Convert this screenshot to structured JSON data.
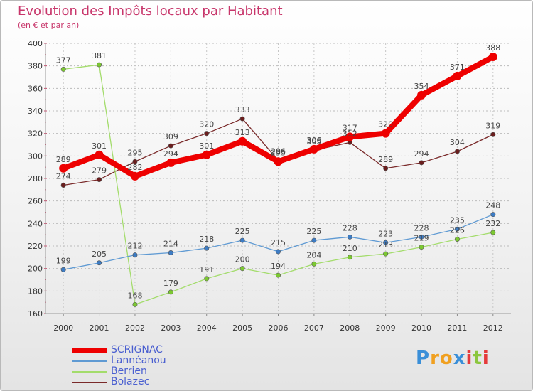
{
  "header": {
    "title": "Evolution des Impôts locaux par Habitant",
    "subtitle": "(en € et par an)"
  },
  "logo": {
    "letters": [
      "P",
      "r",
      "o",
      "x",
      "i",
      "t",
      "i"
    ],
    "colors": [
      "#3a8fd8",
      "#f0a020",
      "#f0a020",
      "#3a8fd8",
      "#e53a3a",
      "#8cc63f",
      "#e53a3a"
    ]
  },
  "legend": [
    {
      "name": "SCRIGNAC",
      "color": "#ee0000"
    },
    {
      "name": "Lannéanou",
      "color": "#5f9ad3"
    },
    {
      "name": "Berrien",
      "color": "#a3dc6b"
    },
    {
      "name": "Bolazec",
      "color": "#7a2a2a"
    }
  ],
  "chart_data": {
    "type": "line",
    "title": "Evolution des Impôts locaux par Habitant",
    "subtitle": "(en € et par an)",
    "x": [
      "2000",
      "2001",
      "2002",
      "2003",
      "2004",
      "2005",
      "2006",
      "2007",
      "2008",
      "2009",
      "2010",
      "2011",
      "2012"
    ],
    "ylim": [
      160,
      400
    ],
    "yticks": [
      160,
      180,
      200,
      220,
      240,
      260,
      280,
      300,
      320,
      340,
      360,
      380,
      400
    ],
    "grid": true,
    "legend_position": "bottom-left",
    "series": [
      {
        "name": "SCRIGNAC",
        "color": "#ee0000",
        "marker": "#ee0000",
        "values": [
          289,
          301,
          282,
          294,
          301,
          313,
          295,
          306,
          317,
          320,
          354,
          371,
          388
        ],
        "labels": [
          "289",
          "301",
          "282",
          "294",
          "301",
          "313",
          "295",
          "306",
          "317",
          "320",
          "354",
          "371",
          "388"
        ]
      },
      {
        "name": "Lannéanou",
        "color": "#5f9ad3",
        "marker": "#3d7cc4",
        "values": [
          199,
          205,
          212,
          214,
          218,
          225,
          215,
          225,
          228,
          223,
          228,
          235,
          248
        ],
        "labels": [
          "199",
          "205",
          "212",
          "214",
          "218",
          "225",
          "215",
          "225",
          "228",
          "223",
          "228",
          "235",
          "248"
        ]
      },
      {
        "name": "Berrien",
        "color": "#a3dc6b",
        "marker": "#7cc832",
        "values": [
          377,
          381,
          168,
          179,
          191,
          200,
          194,
          204,
          210,
          213,
          219,
          226,
          232
        ],
        "labels": [
          "377",
          "381",
          "168",
          "179",
          "191",
          "200",
          "194",
          "204",
          "210",
          "213",
          "219",
          "226",
          "232"
        ]
      },
      {
        "name": "Bolazec",
        "color": "#7a2a2a",
        "marker": "#6a1e1e",
        "values": [
          274,
          279,
          295,
          309,
          320,
          333,
          296,
          305,
          312,
          289,
          294,
          304,
          319
        ],
        "labels": [
          "274",
          "279",
          "295",
          "309",
          "320",
          "333",
          "296",
          "305",
          "312",
          "289",
          "294",
          "304",
          "319"
        ]
      }
    ]
  }
}
